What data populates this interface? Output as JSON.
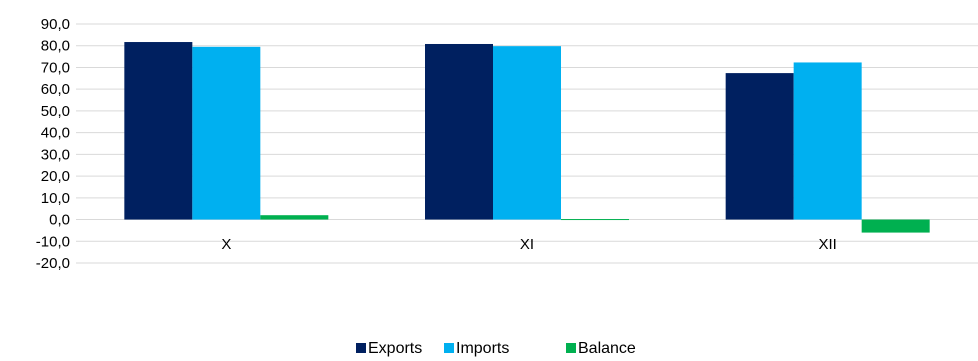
{
  "chart_data": {
    "type": "bar",
    "categories": [
      "X",
      "XI",
      "XII"
    ],
    "series": [
      {
        "name": "Exports",
        "values": [
          81.7,
          80.8,
          67.4
        ],
        "color": "#002060"
      },
      {
        "name": "Imports",
        "values": [
          79.5,
          79.8,
          72.3
        ],
        "color": "#00B0F0"
      },
      {
        "name": "Balance",
        "values": [
          2.0,
          -0.3,
          -6.0
        ],
        "color": "#00B050"
      }
    ],
    "ylim": [
      -20,
      90
    ],
    "yticks": [
      "90,0",
      "80,0",
      "70,0",
      "60,0",
      "50,0",
      "40,0",
      "30,0",
      "20,0",
      "10,0",
      "0,0",
      "-10,0",
      "-20,0"
    ],
    "ytick_values": [
      90,
      80,
      70,
      60,
      50,
      40,
      30,
      20,
      10,
      0,
      -10,
      -20
    ],
    "grid": true,
    "legend_position": "bottom",
    "gridline_color": "#D9D9D9"
  }
}
